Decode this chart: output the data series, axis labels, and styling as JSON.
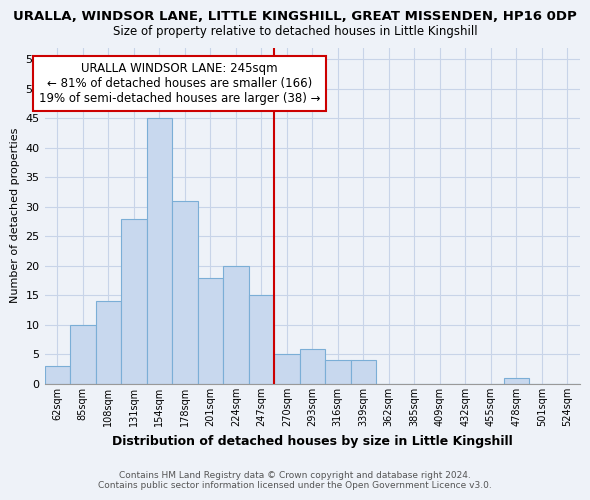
{
  "title": "URALLA, WINDSOR LANE, LITTLE KINGSHILL, GREAT MISSENDEN, HP16 0DP",
  "subtitle": "Size of property relative to detached houses in Little Kingshill",
  "xlabel": "Distribution of detached houses by size in Little Kingshill",
  "ylabel": "Number of detached properties",
  "bar_labels": [
    "62sqm",
    "85sqm",
    "108sqm",
    "131sqm",
    "154sqm",
    "178sqm",
    "201sqm",
    "224sqm",
    "247sqm",
    "270sqm",
    "293sqm",
    "316sqm",
    "339sqm",
    "362sqm",
    "385sqm",
    "409sqm",
    "432sqm",
    "455sqm",
    "478sqm",
    "501sqm",
    "524sqm"
  ],
  "bar_values": [
    3,
    10,
    14,
    28,
    45,
    31,
    18,
    20,
    15,
    5,
    6,
    4,
    4,
    0,
    0,
    0,
    0,
    0,
    1,
    0,
    0
  ],
  "bar_color": "#c8d8ee",
  "bar_edge_color": "#7baed6",
  "vline_color": "#cc0000",
  "ylim": [
    0,
    57
  ],
  "yticks": [
    0,
    5,
    10,
    15,
    20,
    25,
    30,
    35,
    40,
    45,
    50,
    55
  ],
  "annotation_title": "URALLA WINDSOR LANE: 245sqm",
  "annotation_line1": "← 81% of detached houses are smaller (166)",
  "annotation_line2": "19% of semi-detached houses are larger (38) →",
  "annotation_box_color": "#ffffff",
  "annotation_box_edge": "#cc0000",
  "footer_line1": "Contains HM Land Registry data © Crown copyright and database right 2024.",
  "footer_line2": "Contains public sector information licensed under the Open Government Licence v3.0.",
  "grid_color": "#c8d4e8",
  "background_color": "#eef2f8"
}
